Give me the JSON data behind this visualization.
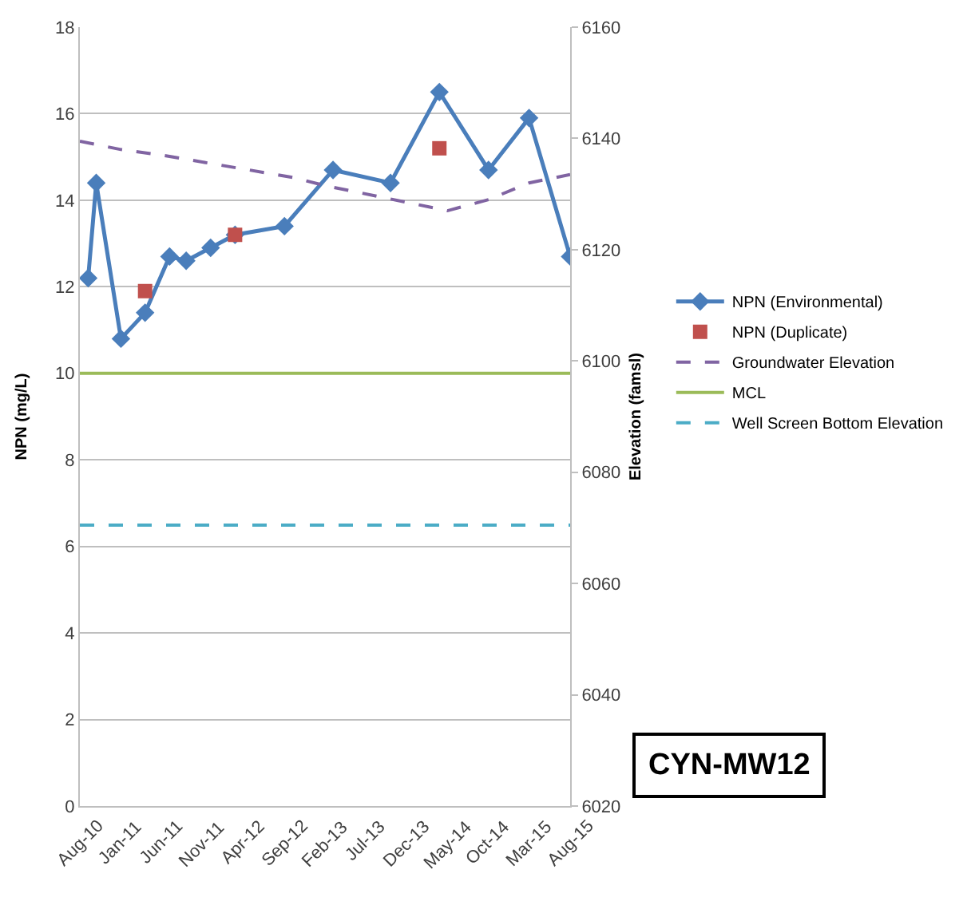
{
  "chart_data": {
    "type": "line",
    "ylabel": "NPN (mg/L)",
    "y2label": "Elevation (famsl)",
    "xlim": [
      "2010-08",
      "2015-08"
    ],
    "xticks": [
      {
        "value": "2010-08",
        "label": "Aug-10"
      },
      {
        "value": "2011-01",
        "label": "Jan-11"
      },
      {
        "value": "2011-06",
        "label": "Jun-11"
      },
      {
        "value": "2011-11",
        "label": "Nov-11"
      },
      {
        "value": "2012-04",
        "label": "Apr-12"
      },
      {
        "value": "2012-09",
        "label": "Sep-12"
      },
      {
        "value": "2013-02",
        "label": "Feb-13"
      },
      {
        "value": "2013-07",
        "label": "Jul-13"
      },
      {
        "value": "2013-12",
        "label": "Dec-13"
      },
      {
        "value": "2014-05",
        "label": "May-14"
      },
      {
        "value": "2014-10",
        "label": "Oct-14"
      },
      {
        "value": "2015-03",
        "label": "Mar-15"
      },
      {
        "value": "2015-08",
        "label": "Aug-15"
      }
    ],
    "ylim": [
      0,
      18
    ],
    "yticks": [
      0,
      2,
      4,
      6,
      8,
      10,
      12,
      14,
      16,
      18
    ],
    "y2lim": [
      6020,
      6160
    ],
    "y2ticks": [
      6020,
      6040,
      6060,
      6080,
      6100,
      6120,
      6140,
      6160
    ],
    "grid": "y",
    "legend": "right",
    "series": [
      {
        "name": "NPN (Environmental)",
        "marker": "diamond",
        "line_style": "solid",
        "color": "#4a7ebb",
        "x": [
          "2010-09",
          "2010-10",
          "2011-01",
          "2011-04",
          "2011-07",
          "2011-09",
          "2011-12",
          "2012-03",
          "2012-09",
          "2013-03",
          "2013-10",
          "2014-04",
          "2014-10",
          "2015-03",
          "2015-08"
        ],
        "values": [
          12.2,
          14.4,
          10.8,
          11.4,
          12.7,
          12.6,
          12.9,
          13.2,
          13.4,
          14.7,
          14.4,
          16.5,
          14.7,
          15.9,
          12.7
        ]
      },
      {
        "name": "NPN (Duplicate)",
        "type": "scatter",
        "marker": "square",
        "color": "#c0504d",
        "x": [
          "2011-04",
          "2012-03",
          "2014-04"
        ],
        "values": [
          11.9,
          13.2,
          15.2
        ]
      },
      {
        "name": "Groundwater Elevation",
        "marker": "none",
        "line_style": "dashed",
        "axis": "y2",
        "color": "#8064a2",
        "x": [
          "2010-08",
          "2011-01",
          "2011-06",
          "2012-10",
          "2013-02",
          "2013-12",
          "2014-05",
          "2014-10",
          "2015-03",
          "2015-08"
        ],
        "values": [
          6139.5,
          6138,
          6137,
          6133,
          6131.5,
          6128.5,
          6127,
          6129,
          6132,
          6133.5
        ]
      }
    ],
    "ref_lines": [
      {
        "axis": "y",
        "value": 10,
        "label": "MCL",
        "color": "#9bbb59",
        "line_style": "solid"
      },
      {
        "axis": "y2",
        "value": 6070.5,
        "label": "Well Screen Bottom Elevation",
        "color": "#4bacc6",
        "line_style": "dashed"
      }
    ],
    "annotations": [
      "CYN-MW12"
    ]
  }
}
